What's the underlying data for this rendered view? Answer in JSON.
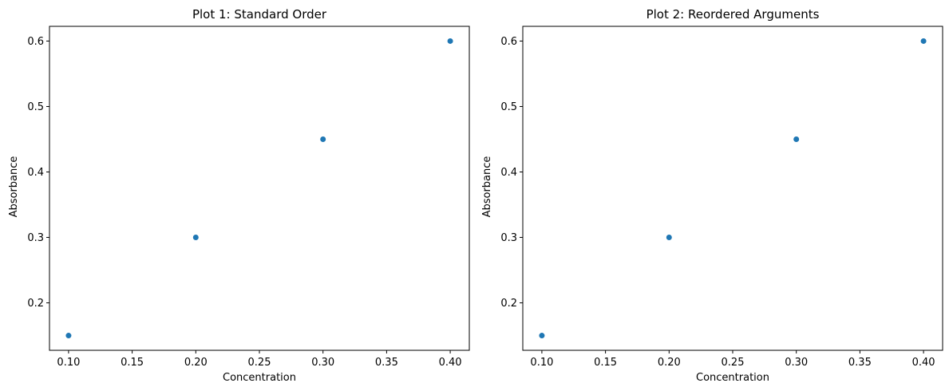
{
  "chart_data": [
    {
      "type": "scatter",
      "title": "Plot 1: Standard Order",
      "xlabel": "Concentration",
      "ylabel": "Absorbance",
      "xlim": [
        0.085,
        0.415
      ],
      "ylim": [
        0.1275,
        0.6225
      ],
      "xticks": [
        0.1,
        0.15,
        0.2,
        0.25,
        0.3,
        0.35,
        0.4
      ],
      "xtick_labels": [
        "0.10",
        "0.15",
        "0.20",
        "0.25",
        "0.30",
        "0.35",
        "0.40"
      ],
      "yticks": [
        0.2,
        0.3,
        0.4,
        0.5,
        0.6
      ],
      "ytick_labels": [
        "0.2",
        "0.3",
        "0.4",
        "0.5",
        "0.6"
      ],
      "grid": false,
      "series": [
        {
          "x": [
            0.1,
            0.2,
            0.3,
            0.4
          ],
          "y": [
            0.15,
            0.3,
            0.45,
            0.6
          ],
          "color": "#1f77b4"
        }
      ]
    },
    {
      "type": "scatter",
      "title": "Plot 2: Reordered Arguments",
      "xlabel": "Concentration",
      "ylabel": "Absorbance",
      "xlim": [
        0.085,
        0.415
      ],
      "ylim": [
        0.1275,
        0.6225
      ],
      "xticks": [
        0.1,
        0.15,
        0.2,
        0.25,
        0.3,
        0.35,
        0.4
      ],
      "xtick_labels": [
        "0.10",
        "0.15",
        "0.20",
        "0.25",
        "0.30",
        "0.35",
        "0.40"
      ],
      "yticks": [
        0.2,
        0.3,
        0.4,
        0.5,
        0.6
      ],
      "ytick_labels": [
        "0.2",
        "0.3",
        "0.4",
        "0.5",
        "0.6"
      ],
      "grid": false,
      "series": [
        {
          "x": [
            0.1,
            0.2,
            0.3,
            0.4
          ],
          "y": [
            0.15,
            0.3,
            0.45,
            0.6
          ],
          "color": "#1f77b4"
        }
      ]
    }
  ]
}
